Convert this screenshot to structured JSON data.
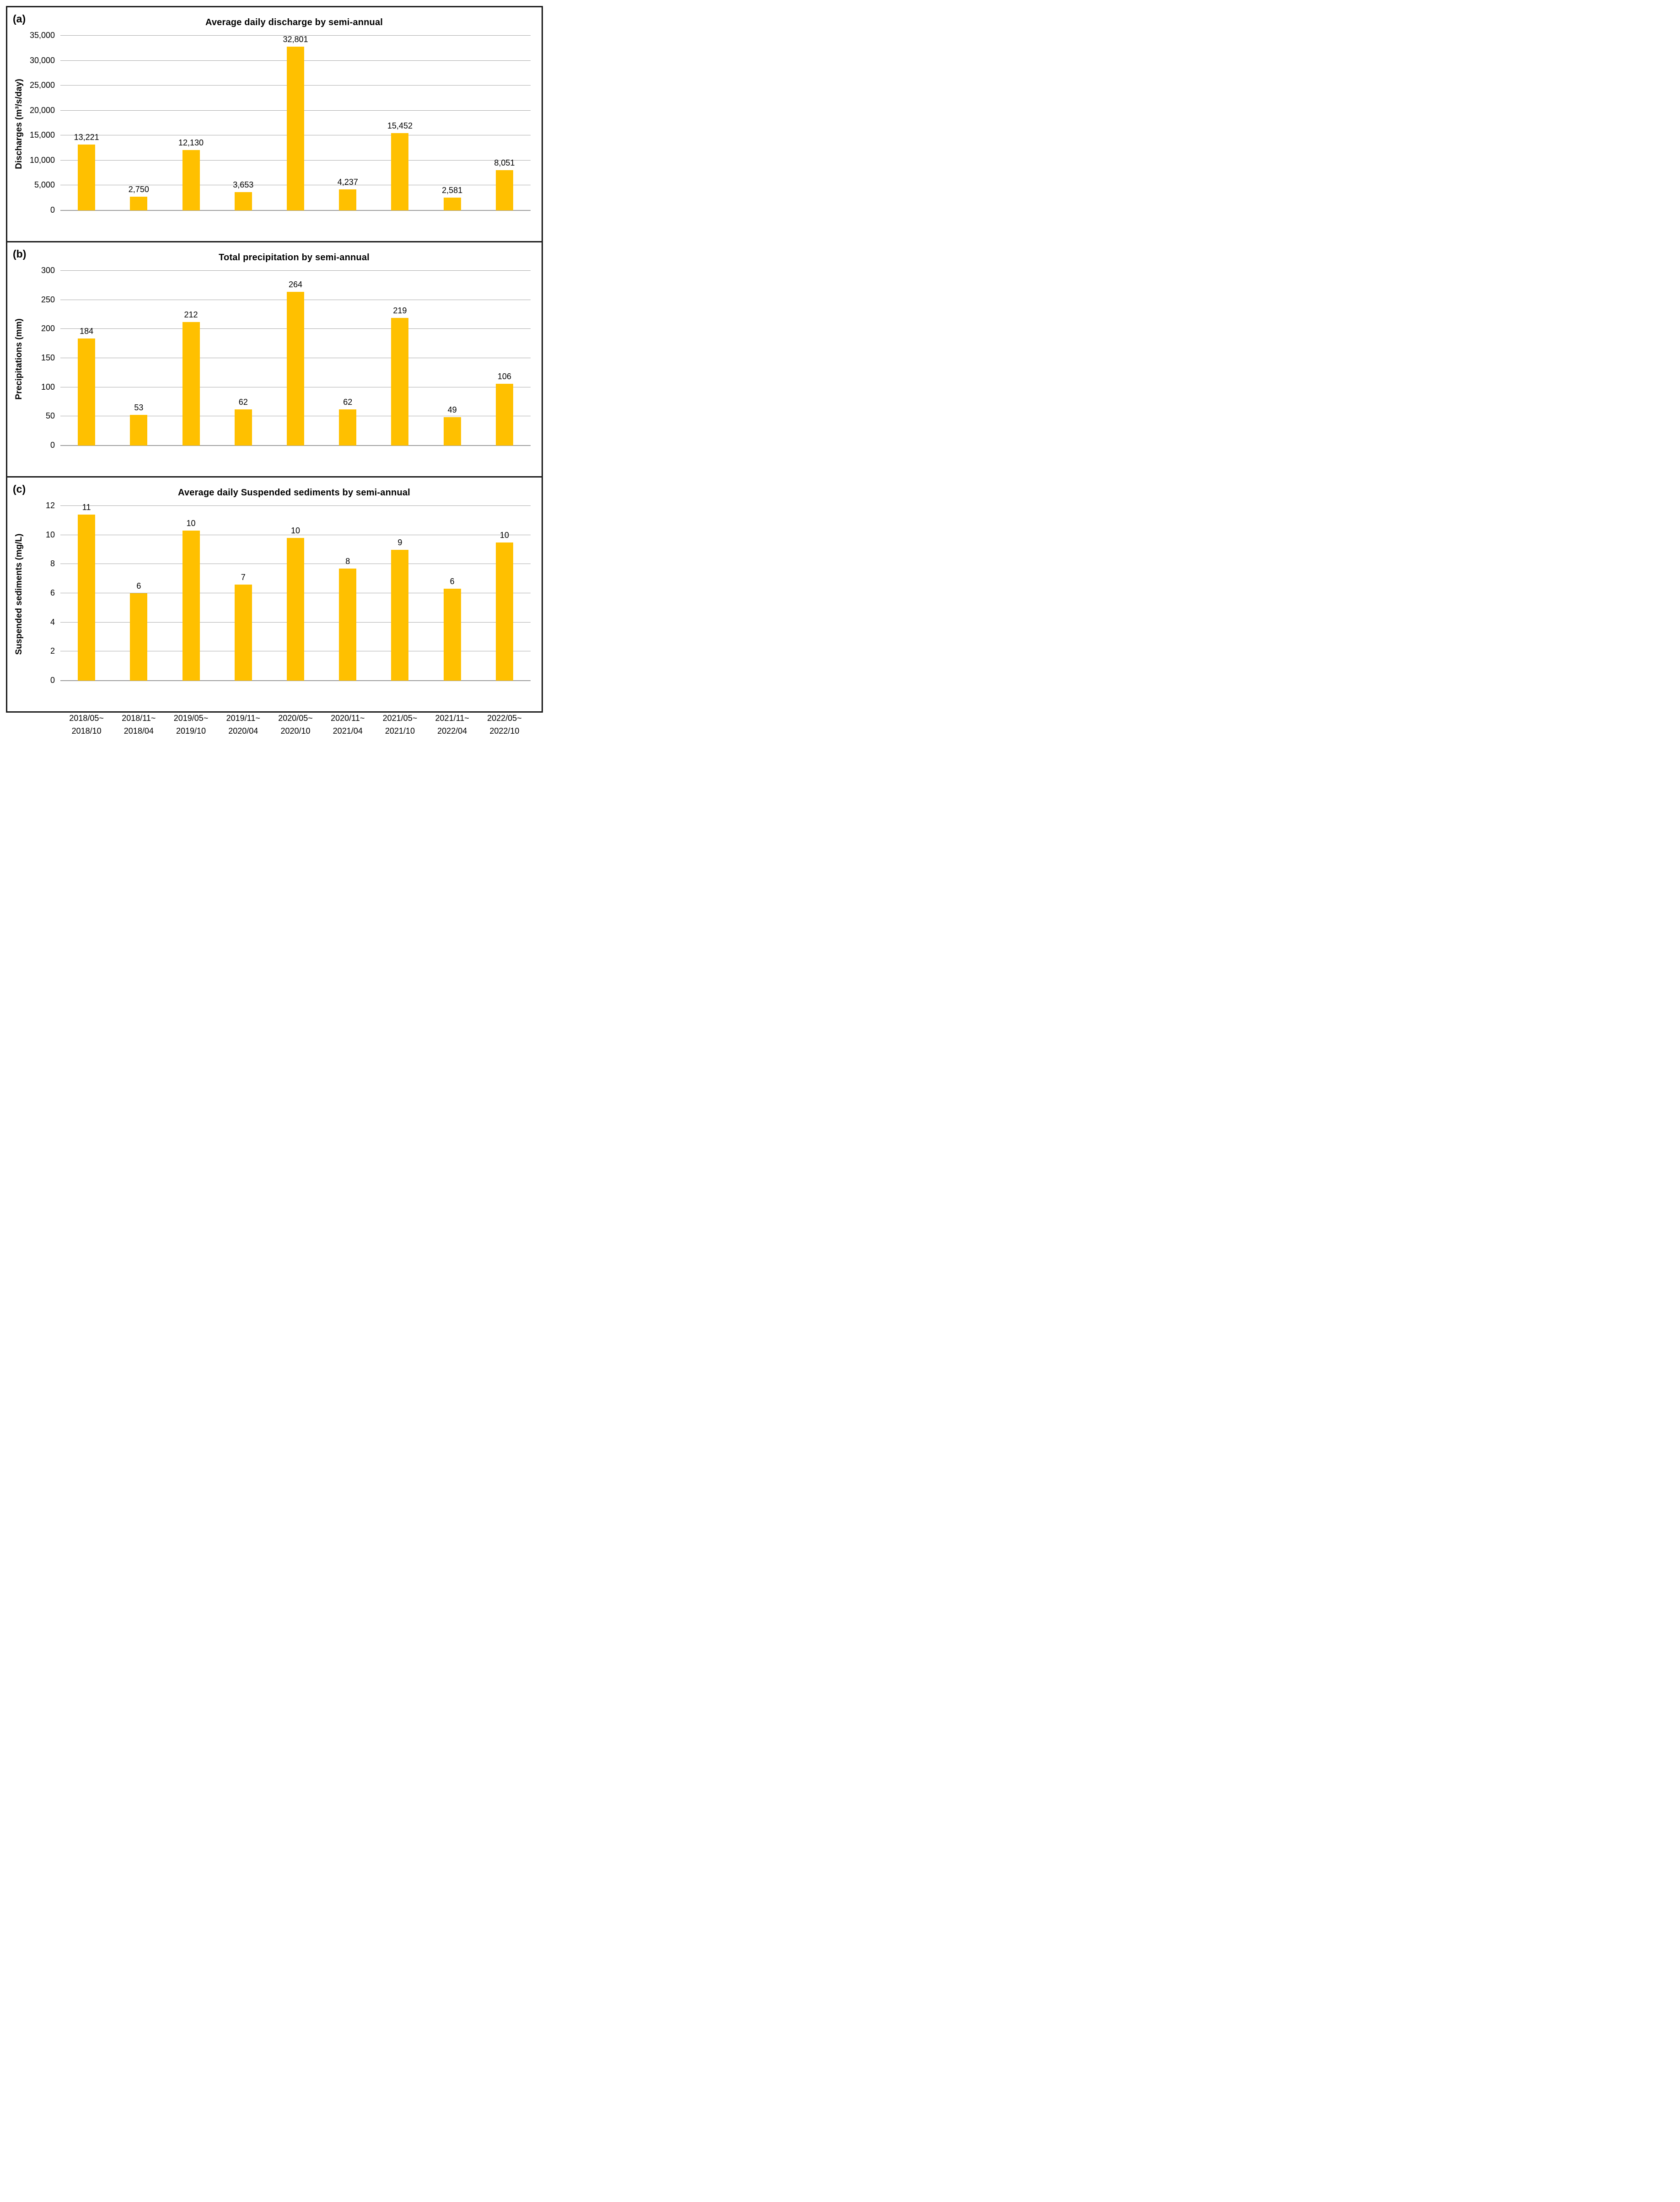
{
  "style": {
    "bar_color": "#FFC000",
    "gridline_color": "#ABABAB",
    "axisline_color": "#A0A0A0",
    "border_color": "#1A1A1A",
    "text_color": "#000000",
    "background": "#FFFFFF"
  },
  "chart_data": [
    {
      "type": "bar",
      "panel_label": "(a)",
      "title": "Average daily discharge by semi-annual",
      "xlabel": "",
      "ylabel": "Discharges (m³/s/day)",
      "categories": [
        [
          "2018/05~",
          "2018/10"
        ],
        [
          "2018/11~",
          "2018/04"
        ],
        [
          "2019/05~",
          "2019/10"
        ],
        [
          "2019/11~",
          "2020/04"
        ],
        [
          "2020/05~",
          "2020/10"
        ],
        [
          "2020/11~",
          "2021/04"
        ],
        [
          "2021/05~",
          "2021/10"
        ],
        [
          "2021/11~",
          "2022/04"
        ],
        [
          "2022/05~",
          "2022/10"
        ]
      ],
      "values": [
        13221,
        2750,
        12130,
        3653,
        32801,
        4237,
        15452,
        2581,
        8051
      ],
      "data_labels": [
        "13,221",
        "2,750",
        "12,130",
        "3,653",
        "32,801",
        "4,237",
        "15,452",
        "2,581",
        "8,051"
      ],
      "ylim": [
        0,
        35000
      ],
      "ytick_interval": 5000,
      "ytick_labels": [
        "0",
        "5,000",
        "10,000",
        "15,000",
        "20,000",
        "25,000",
        "30,000",
        "35,000"
      ],
      "grid": true,
      "legend": "none"
    },
    {
      "type": "bar",
      "panel_label": "(b)",
      "title": "Total precipitation by semi-annual",
      "xlabel": "",
      "ylabel": "Precipitations (mm)",
      "categories": [
        [
          "2018/05~",
          "2018/10"
        ],
        [
          "2018/11~",
          "2018/04"
        ],
        [
          "2019/05~",
          "2019/10"
        ],
        [
          "2019/11~",
          "2020/04"
        ],
        [
          "2020/05~",
          "2020/10"
        ],
        [
          "2020/11~",
          "2021/04"
        ],
        [
          "2021/05~",
          "2021/10"
        ],
        [
          "2021/11~",
          "2022/04"
        ],
        [
          "2022/05~",
          "2022/10"
        ]
      ],
      "values": [
        184,
        53,
        212,
        62,
        264,
        62,
        219,
        49,
        106
      ],
      "data_labels": [
        "184",
        "53",
        "212",
        "62",
        "264",
        "62",
        "219",
        "49",
        "106"
      ],
      "ylim": [
        0,
        300
      ],
      "ytick_interval": 50,
      "ytick_labels": [
        "0",
        "50",
        "100",
        "150",
        "200",
        "250",
        "300"
      ],
      "grid": true,
      "legend": "none"
    },
    {
      "type": "bar",
      "panel_label": "(c)",
      "title": "Average daily Suspended sediments by semi-annual",
      "xlabel": "",
      "ylabel": "Suspended sediments (mg/L)",
      "categories": [
        [
          "2018/05~",
          "2018/10"
        ],
        [
          "2018/11~",
          "2018/04"
        ],
        [
          "2019/05~",
          "2019/10"
        ],
        [
          "2019/11~",
          "2020/04"
        ],
        [
          "2020/05~",
          "2020/10"
        ],
        [
          "2020/11~",
          "2021/04"
        ],
        [
          "2021/05~",
          "2021/10"
        ],
        [
          "2021/11~",
          "2022/04"
        ],
        [
          "2022/05~",
          "2022/10"
        ]
      ],
      "values": [
        11.4,
        6.0,
        10.3,
        6.6,
        9.8,
        7.7,
        9.0,
        6.3,
        9.5
      ],
      "data_labels": [
        "11",
        "6",
        "10",
        "7",
        "10",
        "8",
        "9",
        "6",
        "10"
      ],
      "ylim": [
        0,
        12
      ],
      "ytick_interval": 2,
      "ytick_labels": [
        "0",
        "2",
        "4",
        "6",
        "8",
        "10",
        "12"
      ],
      "grid": true,
      "legend": "none"
    }
  ]
}
